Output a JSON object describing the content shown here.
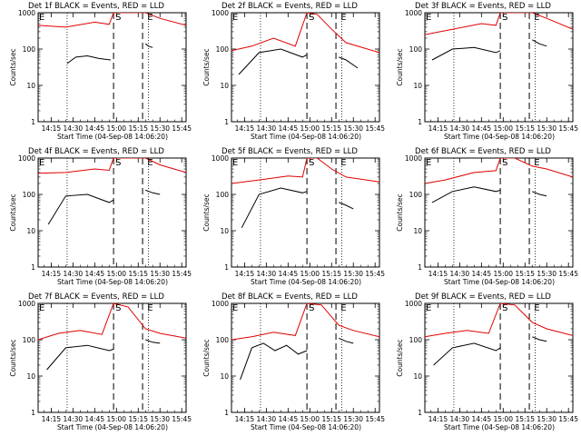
{
  "figure": {
    "xlabel": "Start Time (04-Sep-08 14:06:20)",
    "ylabel": "Counts/sec",
    "x_ticks": [
      "14:15",
      "14:30",
      "14:45",
      "15:00",
      "15:15",
      "15:30",
      "15:45"
    ],
    "y_ticks": [
      "1",
      "10",
      "100",
      "1000"
    ],
    "colors": {
      "events": "#000000",
      "lld": "#e00000"
    },
    "markers": [
      "E",
      "S",
      "E"
    ]
  },
  "chart_data": [
    {
      "type": "line",
      "title": "Det 1f BLACK = Events, RED = LLD",
      "xlabel": "Start Time (04-Sep-08 14:06:20)",
      "ylabel": "Counts/sec",
      "ylog": true,
      "ylim": [
        1,
        1000
      ],
      "xlim": [
        "14:06",
        "15:48"
      ],
      "event_lines": {
        "dotted": [
          "14:26",
          "15:22"
        ],
        "dashed": [
          "14:58",
          "15:18"
        ]
      },
      "markers": {
        "E_left": "14:06",
        "S": "14:58",
        "E_right": "15:20"
      },
      "series": [
        {
          "name": "Events",
          "segments": [
            {
              "x": [
                "14:26",
                "14:32",
                "14:40",
                "14:48",
                "14:56"
              ],
              "y": [
                40,
                60,
                65,
                55,
                50
              ]
            },
            {
              "x": [
                "15:20",
                "15:22",
                "15:25"
              ],
              "y": [
                140,
                120,
                110
              ]
            }
          ]
        },
        {
          "name": "LLD",
          "x": [
            "14:06",
            "14:25",
            "14:45",
            "14:55",
            "14:58",
            "15:08",
            "15:20",
            "15:30",
            "15:48"
          ],
          "y": [
            450,
            400,
            550,
            480,
            1500,
            3000,
            1100,
            700,
            450
          ]
        }
      ]
    },
    {
      "type": "line",
      "title": "Det 2f BLACK = Events, RED = LLD",
      "xlabel": "Start Time (04-Sep-08 14:06:20)",
      "ylabel": "Counts/sec",
      "ylog": true,
      "ylim": [
        1,
        1000
      ],
      "xlim": [
        "14:06",
        "15:48"
      ],
      "event_lines": {
        "dotted": [
          "14:26",
          "15:22"
        ],
        "dashed": [
          "14:58",
          "15:18"
        ]
      },
      "markers": {
        "E_left": "14:06",
        "S": "14:58",
        "E_right": "15:20"
      },
      "series": [
        {
          "name": "Events",
          "segments": [
            {
              "x": [
                "14:11",
                "14:25",
                "14:40",
                "14:55",
                "14:58"
              ],
              "y": [
                20,
                80,
                100,
                60,
                70
              ]
            },
            {
              "x": [
                "15:20",
                "15:25",
                "15:33"
              ],
              "y": [
                60,
                50,
                30
              ]
            }
          ]
        },
        {
          "name": "LLD",
          "x": [
            "14:06",
            "14:20",
            "14:35",
            "14:50",
            "14:58",
            "15:05",
            "15:15",
            "15:25",
            "15:48"
          ],
          "y": [
            90,
            120,
            200,
            120,
            1500,
            900,
            350,
            150,
            80
          ]
        }
      ]
    },
    {
      "type": "line",
      "title": "Det 3f BLACK = Events, RED = LLD",
      "xlabel": "Start Time (04-Sep-08 14:06:20)",
      "ylabel": "Counts/sec",
      "ylog": true,
      "ylim": [
        1,
        1000
      ],
      "xlim": [
        "14:06",
        "15:48"
      ],
      "event_lines": {
        "dotted": [
          "14:26",
          "15:22"
        ],
        "dashed": [
          "14:58",
          "15:18"
        ]
      },
      "markers": {
        "E_left": "14:06",
        "S": "14:58",
        "E_right": "15:20"
      },
      "series": [
        {
          "name": "Events",
          "segments": [
            {
              "x": [
                "14:11",
                "14:25",
                "14:40",
                "14:55",
                "14:58"
              ],
              "y": [
                50,
                100,
                110,
                80,
                90
              ]
            },
            {
              "x": [
                "15:20",
                "15:25",
                "15:30"
              ],
              "y": [
                180,
                140,
                120
              ]
            }
          ]
        },
        {
          "name": "LLD",
          "x": [
            "14:06",
            "14:25",
            "14:45",
            "14:55",
            "14:58",
            "15:08",
            "15:20",
            "15:30",
            "15:48"
          ],
          "y": [
            250,
            350,
            500,
            450,
            1500,
            2000,
            1000,
            700,
            350
          ]
        }
      ]
    },
    {
      "type": "line",
      "title": "Det 4f BLACK = Events, RED = LLD",
      "xlabel": "Start Time (04-Sep-08 14:06:20)",
      "ylabel": "Counts/sec",
      "ylog": true,
      "ylim": [
        1,
        1000
      ],
      "xlim": [
        "14:06",
        "15:48"
      ],
      "event_lines": {
        "dotted": [
          "14:26",
          "15:22"
        ],
        "dashed": [
          "14:58",
          "15:18"
        ]
      },
      "markers": {
        "E_left": "14:06",
        "S": "14:58",
        "E_right": "15:20"
      },
      "series": [
        {
          "name": "Events",
          "segments": [
            {
              "x": [
                "14:13",
                "14:25",
                "14:40",
                "14:55",
                "14:58"
              ],
              "y": [
                15,
                90,
                100,
                60,
                70
              ]
            },
            {
              "x": [
                "15:20",
                "15:25",
                "15:30"
              ],
              "y": [
                130,
                110,
                100
              ]
            }
          ]
        },
        {
          "name": "LLD",
          "x": [
            "14:06",
            "14:25",
            "14:45",
            "14:55",
            "14:58",
            "15:08",
            "15:20",
            "15:30",
            "15:48"
          ],
          "y": [
            380,
            400,
            500,
            460,
            1500,
            2500,
            1000,
            650,
            400
          ]
        }
      ]
    },
    {
      "type": "line",
      "title": "Det 5f BLACK = Events, RED = LLD",
      "xlabel": "Start Time (04-Sep-08 14:06:20)",
      "ylabel": "Counts/sec",
      "ylog": true,
      "ylim": [
        1,
        1000
      ],
      "xlim": [
        "14:06",
        "15:48"
      ],
      "event_lines": {
        "dotted": [
          "14:26",
          "15:22"
        ],
        "dashed": [
          "14:58",
          "15:18"
        ]
      },
      "markers": {
        "E_left": "14:06",
        "S": "14:58",
        "E_right": "15:20"
      },
      "series": [
        {
          "name": "Events",
          "segments": [
            {
              "x": [
                "14:13",
                "14:25",
                "14:40",
                "14:55",
                "14:58"
              ],
              "y": [
                12,
                100,
                150,
                110,
                120
              ]
            },
            {
              "x": [
                "15:20",
                "15:25",
                "15:30"
              ],
              "y": [
                60,
                50,
                40
              ]
            }
          ]
        },
        {
          "name": "LLD",
          "x": [
            "14:06",
            "14:25",
            "14:45",
            "14:55",
            "14:58",
            "15:05",
            "15:15",
            "15:25",
            "15:48"
          ],
          "y": [
            200,
            250,
            320,
            300,
            1500,
            1200,
            500,
            300,
            220
          ]
        }
      ]
    },
    {
      "type": "line",
      "title": "Det 6f BLACK = Events, RED = LLD",
      "xlabel": "Start Time (04-Sep-08 14:06:20)",
      "ylabel": "Counts/sec",
      "ylog": true,
      "ylim": [
        1,
        1000
      ],
      "xlim": [
        "14:06",
        "15:48"
      ],
      "event_lines": {
        "dotted": [
          "14:26",
          "15:22"
        ],
        "dashed": [
          "14:58",
          "15:18"
        ]
      },
      "markers": {
        "E_left": "14:06",
        "S": "14:58",
        "E_right": "15:20"
      },
      "series": [
        {
          "name": "Events",
          "segments": [
            {
              "x": [
                "14:11",
                "14:25",
                "14:40",
                "14:55",
                "14:58"
              ],
              "y": [
                60,
                120,
                160,
                120,
                130
              ]
            },
            {
              "x": [
                "15:20",
                "15:25",
                "15:30"
              ],
              "y": [
                120,
                100,
                90
              ]
            }
          ]
        },
        {
          "name": "LLD",
          "x": [
            "14:06",
            "14:20",
            "14:40",
            "14:55",
            "14:58",
            "15:08",
            "15:20",
            "15:30",
            "15:48"
          ],
          "y": [
            200,
            250,
            400,
            450,
            1500,
            1200,
            600,
            500,
            300
          ]
        }
      ]
    },
    {
      "type": "line",
      "title": "Det 7f BLACK = Events, RED = LLD",
      "xlabel": "Start Time (04-Sep-08 14:06:20)",
      "ylabel": "Counts/sec",
      "ylog": true,
      "ylim": [
        1,
        1000
      ],
      "xlim": [
        "14:06",
        "15:48"
      ],
      "event_lines": {
        "dotted": [
          "14:26",
          "15:22"
        ],
        "dashed": [
          "14:58",
          "15:18"
        ]
      },
      "markers": {
        "E_left": "14:06",
        "S": "14:58",
        "E_right": "15:20"
      },
      "series": [
        {
          "name": "Events",
          "segments": [
            {
              "x": [
                "14:12",
                "14:25",
                "14:40",
                "14:55",
                "14:58"
              ],
              "y": [
                15,
                60,
                70,
                50,
                55
              ]
            },
            {
              "x": [
                "15:20",
                "15:25",
                "15:30"
              ],
              "y": [
                100,
                85,
                80
              ]
            }
          ]
        },
        {
          "name": "LLD",
          "x": [
            "14:06",
            "14:20",
            "14:35",
            "14:50",
            "14:58",
            "15:08",
            "15:20",
            "15:30",
            "15:48"
          ],
          "y": [
            100,
            150,
            180,
            140,
            1500,
            800,
            200,
            150,
            110
          ]
        }
      ]
    },
    {
      "type": "line",
      "title": "Det 8f BLACK = Events, RED = LLD",
      "xlabel": "Start Time (04-Sep-08 14:06:20)",
      "ylabel": "Counts/sec",
      "ylog": true,
      "ylim": [
        1,
        1000
      ],
      "xlim": [
        "14:06",
        "15:48"
      ],
      "event_lines": {
        "dotted": [
          "14:26",
          "15:22"
        ],
        "dashed": [
          "14:58",
          "15:18"
        ]
      },
      "markers": {
        "E_left": "14:06",
        "S": "14:58",
        "E_right": "15:20"
      },
      "series": [
        {
          "name": "Events",
          "segments": [
            {
              "x": [
                "14:12",
                "14:20",
                "14:28",
                "14:36",
                "14:44",
                "14:52",
                "14:58"
              ],
              "y": [
                8,
                60,
                80,
                50,
                70,
                40,
                50
              ]
            },
            {
              "x": [
                "15:20",
                "15:25",
                "15:30"
              ],
              "y": [
                110,
                90,
                80
              ]
            }
          ]
        },
        {
          "name": "LLD",
          "x": [
            "14:06",
            "14:20",
            "14:35",
            "14:50",
            "14:58",
            "15:08",
            "15:20",
            "15:30",
            "15:48"
          ],
          "y": [
            100,
            120,
            160,
            130,
            1500,
            900,
            250,
            180,
            120
          ]
        }
      ]
    },
    {
      "type": "line",
      "title": "Det 9f BLACK = Events, RED = LLD",
      "xlabel": "Start Time (04-Sep-08 14:06:20)",
      "ylabel": "Counts/sec",
      "ylog": true,
      "ylim": [
        1,
        1000
      ],
      "xlim": [
        "14:06",
        "15:48"
      ],
      "event_lines": {
        "dotted": [
          "14:26",
          "15:22"
        ],
        "dashed": [
          "14:58",
          "15:18"
        ]
      },
      "markers": {
        "E_left": "14:06",
        "S": "14:58",
        "E_right": "15:20"
      },
      "series": [
        {
          "name": "Events",
          "segments": [
            {
              "x": [
                "14:12",
                "14:25",
                "14:40",
                "14:55",
                "14:58"
              ],
              "y": [
                20,
                60,
                80,
                50,
                60
              ]
            },
            {
              "x": [
                "15:20",
                "15:25",
                "15:30"
              ],
              "y": [
                120,
                100,
                90
              ]
            }
          ]
        },
        {
          "name": "LLD",
          "x": [
            "14:06",
            "14:20",
            "14:35",
            "14:50",
            "14:58",
            "15:08",
            "15:20",
            "15:30",
            "15:48"
          ],
          "y": [
            120,
            150,
            180,
            150,
            1500,
            900,
            300,
            200,
            130
          ]
        }
      ]
    }
  ]
}
